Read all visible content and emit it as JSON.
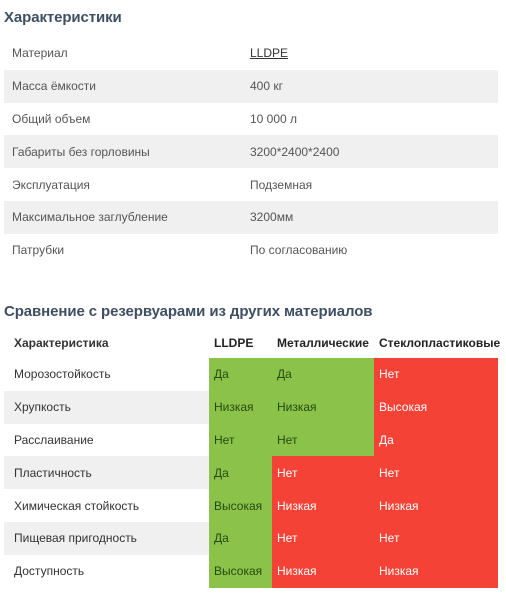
{
  "specs": {
    "title": "Характеристики",
    "rows": [
      {
        "key": "Материал",
        "value": "LLDPE"
      },
      {
        "key": "Масса ёмкости",
        "value": "400 кг"
      },
      {
        "key": "Общий объем",
        "value": "10 000 л"
      },
      {
        "key": "Габариты без горловины",
        "value": "3200*2400*2400"
      },
      {
        "key": "Эксплуатация",
        "value": "Подземная"
      },
      {
        "key": "Максимальное заглубление",
        "value": "3200мм"
      },
      {
        "key": "Патрубки",
        "value": "По согласованию"
      }
    ]
  },
  "comparison": {
    "title": "Сравнение с резервуарами из других материалов",
    "headers": [
      "Характеристика",
      "LLDPE",
      "Металлические",
      "Стеклопластиковые"
    ],
    "rows": [
      {
        "name": "Морозостойкость",
        "cells": [
          "Да",
          "Да",
          "Нет"
        ]
      },
      {
        "name": "Хрупкость",
        "cells": [
          "Низкая",
          "Низкая",
          "Высокая"
        ]
      },
      {
        "name": "Расслаивание",
        "cells": [
          "Нет",
          "Нет",
          "Да"
        ]
      },
      {
        "name": "Пластичность",
        "cells": [
          "Да",
          "Нет",
          "Нет"
        ]
      },
      {
        "name": "Химическая стойкость",
        "cells": [
          "Высокая",
          "Низкая",
          "Низкая"
        ]
      },
      {
        "name": "Пищевая пригодность",
        "cells": [
          "Да",
          "Нет",
          "Нет"
        ]
      },
      {
        "name": "Доступность",
        "cells": [
          "Высокая",
          "Низкая",
          "Низкая"
        ]
      }
    ],
    "status": [
      [
        "good",
        "good",
        "bad"
      ],
      [
        "good",
        "good",
        "bad"
      ],
      [
        "good",
        "good",
        "bad"
      ],
      [
        "good",
        "bad",
        "bad"
      ],
      [
        "good",
        "bad",
        "bad"
      ],
      [
        "good",
        "bad",
        "bad"
      ],
      [
        "good",
        "bad",
        "bad"
      ]
    ],
    "colors": {
      "good": "#8bc34a",
      "bad": "#f44336"
    }
  }
}
